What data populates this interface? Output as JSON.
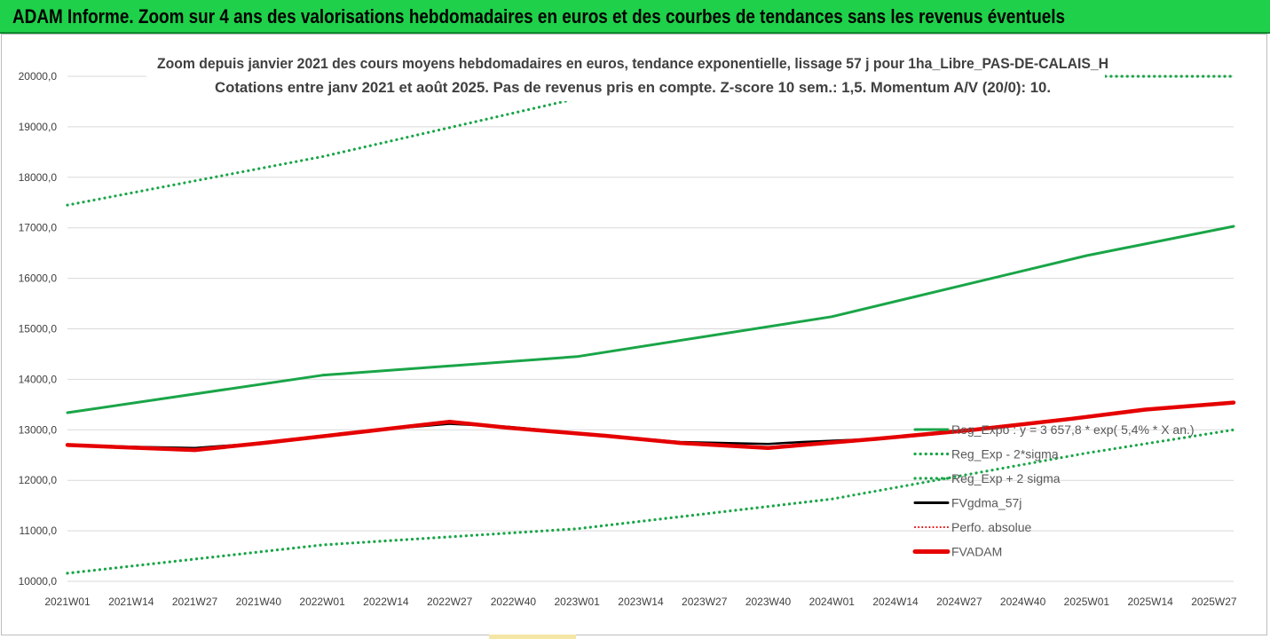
{
  "banner": {
    "title": "ADAM Informe. Zoom sur 4 ans des valorisations hebdomadaires en euros et des courbes de tendances sans les revenus éventuels",
    "color": "#1fd14a"
  },
  "chart_data": {
    "type": "line",
    "title": "Zoom depuis janvier 2021 des cours moyens hebdomadaires en euros, tendance exponentielle, lissage 57 j pour 1ha_Libre_PAS-DE-CALAIS_H",
    "subtitle": "Cotations entre janv 2021 et août 2025. Pas de revenus pris en compte. Z-score 10 sem.: 1,5. Momentum A/V (20/0): 10.",
    "ylim": [
      10000,
      20000
    ],
    "yticks": [
      "10000,0",
      "11000,0",
      "12000,0",
      "13000,0",
      "14000,0",
      "15000,0",
      "16000,0",
      "17000,0",
      "18000,0",
      "19000,0",
      "20000,0"
    ],
    "x_categories": [
      "2021W01",
      "2021W14",
      "2021W27",
      "2021W40",
      "2022W01",
      "2022W14",
      "2022W27",
      "2022W40",
      "2023W01",
      "2023W14",
      "2023W27",
      "2023W40",
      "2024W01",
      "2024W14",
      "2024W27",
      "2024W40",
      "2025W01",
      "2025W14",
      "2025W27"
    ],
    "x_extent_weeks": [
      0,
      238
    ],
    "grid": true,
    "legend_position": "right",
    "series": [
      {
        "name": "Reg_Expo : y = 3 657,8 * exp( 5,4% * X an.)",
        "color": "#1aa548",
        "style": "solid",
        "x": [
          0,
          52,
          104,
          156,
          208,
          238
        ],
        "y": [
          13340,
          14080,
          14450,
          15240,
          16450,
          17030
        ]
      },
      {
        "name": "Reg_Exp - 2*sigma",
        "color": "#1aa548",
        "style": "dotted",
        "x": [
          0,
          52,
          104,
          156,
          208,
          238
        ],
        "y": [
          10160,
          10720,
          11040,
          11630,
          12540,
          13000
        ]
      },
      {
        "name": "Reg_Exp + 2 sigma",
        "color": "#1aa548",
        "style": "dotted",
        "x": [
          0,
          52,
          104,
          156,
          208,
          238
        ],
        "y": [
          17450,
          18410,
          19560,
          20000,
          20000,
          20000
        ]
      },
      {
        "name": "FVgdma_57j",
        "color": "#000000",
        "style": "solid",
        "x": [
          0,
          15,
          26,
          40,
          60,
          78,
          90,
          110,
          125,
          143,
          150,
          165,
          185,
          205,
          220,
          238
        ],
        "y": [
          12700,
          12660,
          12640,
          12740,
          12970,
          13120,
          13060,
          12880,
          12760,
          12720,
          12760,
          12820,
          13000,
          13220,
          13400,
          13540
        ]
      },
      {
        "name": "Perfo. absolue",
        "color": "#e00000",
        "style": "dotted",
        "x": [
          0,
          15,
          26,
          40,
          60,
          78,
          90,
          110,
          125,
          143,
          150,
          165,
          185,
          205,
          220,
          238
        ],
        "y": [
          12700,
          12640,
          12600,
          12740,
          12960,
          13160,
          13040,
          12880,
          12740,
          12640,
          12700,
          12820,
          13000,
          13220,
          13400,
          13540
        ]
      },
      {
        "name": "FVADAM",
        "color": "#e60000",
        "style": "solid",
        "x": [
          0,
          15,
          26,
          40,
          60,
          78,
          90,
          110,
          125,
          143,
          150,
          165,
          185,
          205,
          220,
          238
        ],
        "y": [
          12700,
          12640,
          12600,
          12740,
          12960,
          13160,
          13040,
          12880,
          12740,
          12640,
          12700,
          12820,
          13000,
          13220,
          13400,
          13540
        ]
      }
    ]
  }
}
